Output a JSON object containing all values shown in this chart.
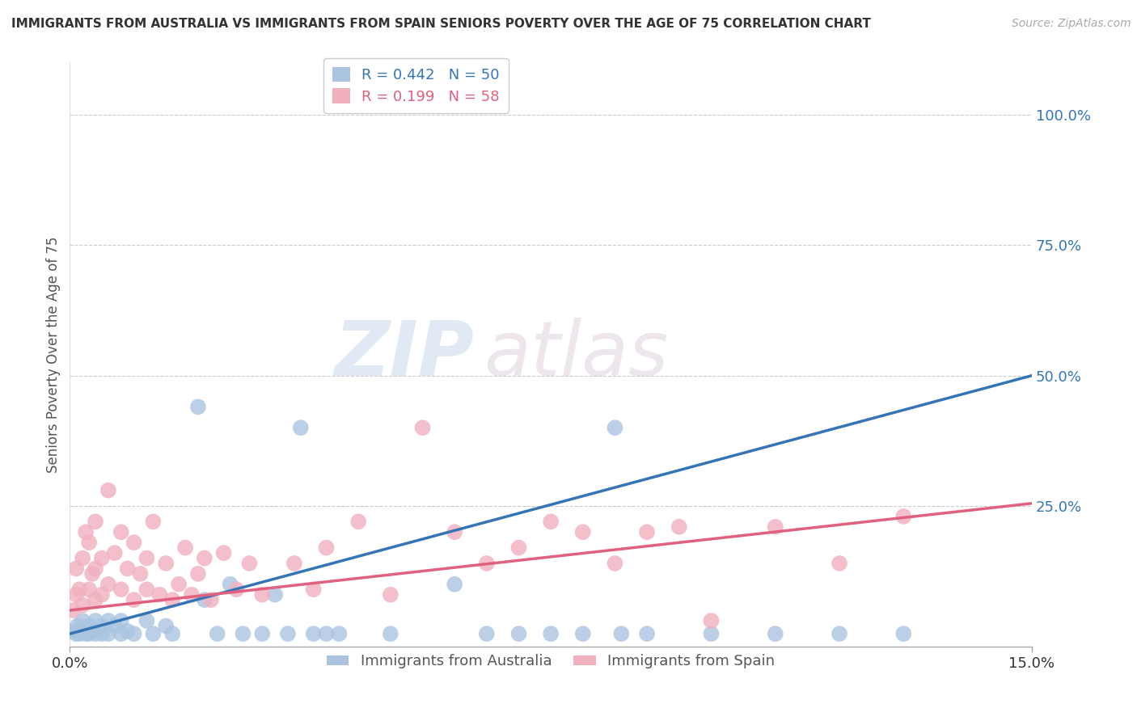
{
  "title": "IMMIGRANTS FROM AUSTRALIA VS IMMIGRANTS FROM SPAIN SENIORS POVERTY OVER THE AGE OF 75 CORRELATION CHART",
  "source": "Source: ZipAtlas.com",
  "ylabel": "Seniors Poverty Over the Age of 75",
  "xlim": [
    0.0,
    0.15
  ],
  "ylim": [
    -0.02,
    1.1
  ],
  "watermark_zip": "ZIP",
  "watermark_atlas": "atlas",
  "legend_label_australia": "Immigrants from Australia",
  "legend_label_spain": "Immigrants from Spain",
  "australia_color": "#aac4e0",
  "spain_color": "#f0b0be",
  "australia_line_color": "#3575b5",
  "spain_line_color": "#e06080",
  "australia_R": 0.442,
  "australia_N": 50,
  "spain_R": 0.199,
  "spain_N": 58,
  "aus_line_x0": 0.0,
  "aus_line_y0": 0.005,
  "aus_line_x1": 0.15,
  "aus_line_y1": 0.5,
  "esp_line_x0": 0.0,
  "esp_line_y0": 0.05,
  "esp_line_x1": 0.15,
  "esp_line_y1": 0.255,
  "australia_points": [
    [
      0.0005,
      0.01
    ],
    [
      0.001,
      0.005
    ],
    [
      0.0012,
      0.02
    ],
    [
      0.0015,
      0.005
    ],
    [
      0.002,
      0.01
    ],
    [
      0.002,
      0.03
    ],
    [
      0.0025,
      0.005
    ],
    [
      0.003,
      0.02
    ],
    [
      0.003,
      0.005
    ],
    [
      0.0035,
      0.01
    ],
    [
      0.004,
      0.03
    ],
    [
      0.004,
      0.005
    ],
    [
      0.005,
      0.02
    ],
    [
      0.005,
      0.005
    ],
    [
      0.006,
      0.03
    ],
    [
      0.006,
      0.005
    ],
    [
      0.007,
      0.02
    ],
    [
      0.008,
      0.005
    ],
    [
      0.008,
      0.03
    ],
    [
      0.009,
      0.01
    ],
    [
      0.01,
      0.005
    ],
    [
      0.012,
      0.03
    ],
    [
      0.013,
      0.005
    ],
    [
      0.015,
      0.02
    ],
    [
      0.016,
      0.005
    ],
    [
      0.02,
      0.44
    ],
    [
      0.021,
      0.07
    ],
    [
      0.023,
      0.005
    ],
    [
      0.025,
      0.1
    ],
    [
      0.027,
      0.005
    ],
    [
      0.03,
      0.005
    ],
    [
      0.032,
      0.08
    ],
    [
      0.034,
      0.005
    ],
    [
      0.036,
      0.4
    ],
    [
      0.038,
      0.005
    ],
    [
      0.04,
      0.005
    ],
    [
      0.042,
      0.005
    ],
    [
      0.05,
      0.005
    ],
    [
      0.06,
      0.1
    ],
    [
      0.065,
      0.005
    ],
    [
      0.07,
      0.005
    ],
    [
      0.075,
      0.005
    ],
    [
      0.08,
      0.005
    ],
    [
      0.085,
      0.4
    ],
    [
      0.086,
      0.005
    ],
    [
      0.09,
      0.005
    ],
    [
      0.1,
      0.005
    ],
    [
      0.11,
      0.005
    ],
    [
      0.12,
      0.005
    ],
    [
      0.13,
      0.005
    ]
  ],
  "spain_points": [
    [
      0.0005,
      0.05
    ],
    [
      0.001,
      0.13
    ],
    [
      0.001,
      0.08
    ],
    [
      0.0015,
      0.09
    ],
    [
      0.002,
      0.15
    ],
    [
      0.002,
      0.06
    ],
    [
      0.0025,
      0.2
    ],
    [
      0.003,
      0.09
    ],
    [
      0.003,
      0.18
    ],
    [
      0.0035,
      0.12
    ],
    [
      0.004,
      0.07
    ],
    [
      0.004,
      0.22
    ],
    [
      0.004,
      0.13
    ],
    [
      0.005,
      0.15
    ],
    [
      0.005,
      0.08
    ],
    [
      0.006,
      0.28
    ],
    [
      0.006,
      0.1
    ],
    [
      0.007,
      0.16
    ],
    [
      0.008,
      0.09
    ],
    [
      0.008,
      0.2
    ],
    [
      0.009,
      0.13
    ],
    [
      0.01,
      0.07
    ],
    [
      0.01,
      0.18
    ],
    [
      0.011,
      0.12
    ],
    [
      0.012,
      0.09
    ],
    [
      0.012,
      0.15
    ],
    [
      0.013,
      0.22
    ],
    [
      0.014,
      0.08
    ],
    [
      0.015,
      0.14
    ],
    [
      0.016,
      0.07
    ],
    [
      0.017,
      0.1
    ],
    [
      0.018,
      0.17
    ],
    [
      0.019,
      0.08
    ],
    [
      0.02,
      0.12
    ],
    [
      0.021,
      0.15
    ],
    [
      0.022,
      0.07
    ],
    [
      0.024,
      0.16
    ],
    [
      0.026,
      0.09
    ],
    [
      0.028,
      0.14
    ],
    [
      0.03,
      0.08
    ],
    [
      0.035,
      0.14
    ],
    [
      0.038,
      0.09
    ],
    [
      0.04,
      0.17
    ],
    [
      0.045,
      0.22
    ],
    [
      0.05,
      0.08
    ],
    [
      0.055,
      0.4
    ],
    [
      0.06,
      0.2
    ],
    [
      0.065,
      0.14
    ],
    [
      0.07,
      0.17
    ],
    [
      0.075,
      0.22
    ],
    [
      0.08,
      0.2
    ],
    [
      0.085,
      0.14
    ],
    [
      0.09,
      0.2
    ],
    [
      0.095,
      0.21
    ],
    [
      0.1,
      0.03
    ],
    [
      0.11,
      0.21
    ],
    [
      0.12,
      0.14
    ],
    [
      0.13,
      0.23
    ]
  ]
}
